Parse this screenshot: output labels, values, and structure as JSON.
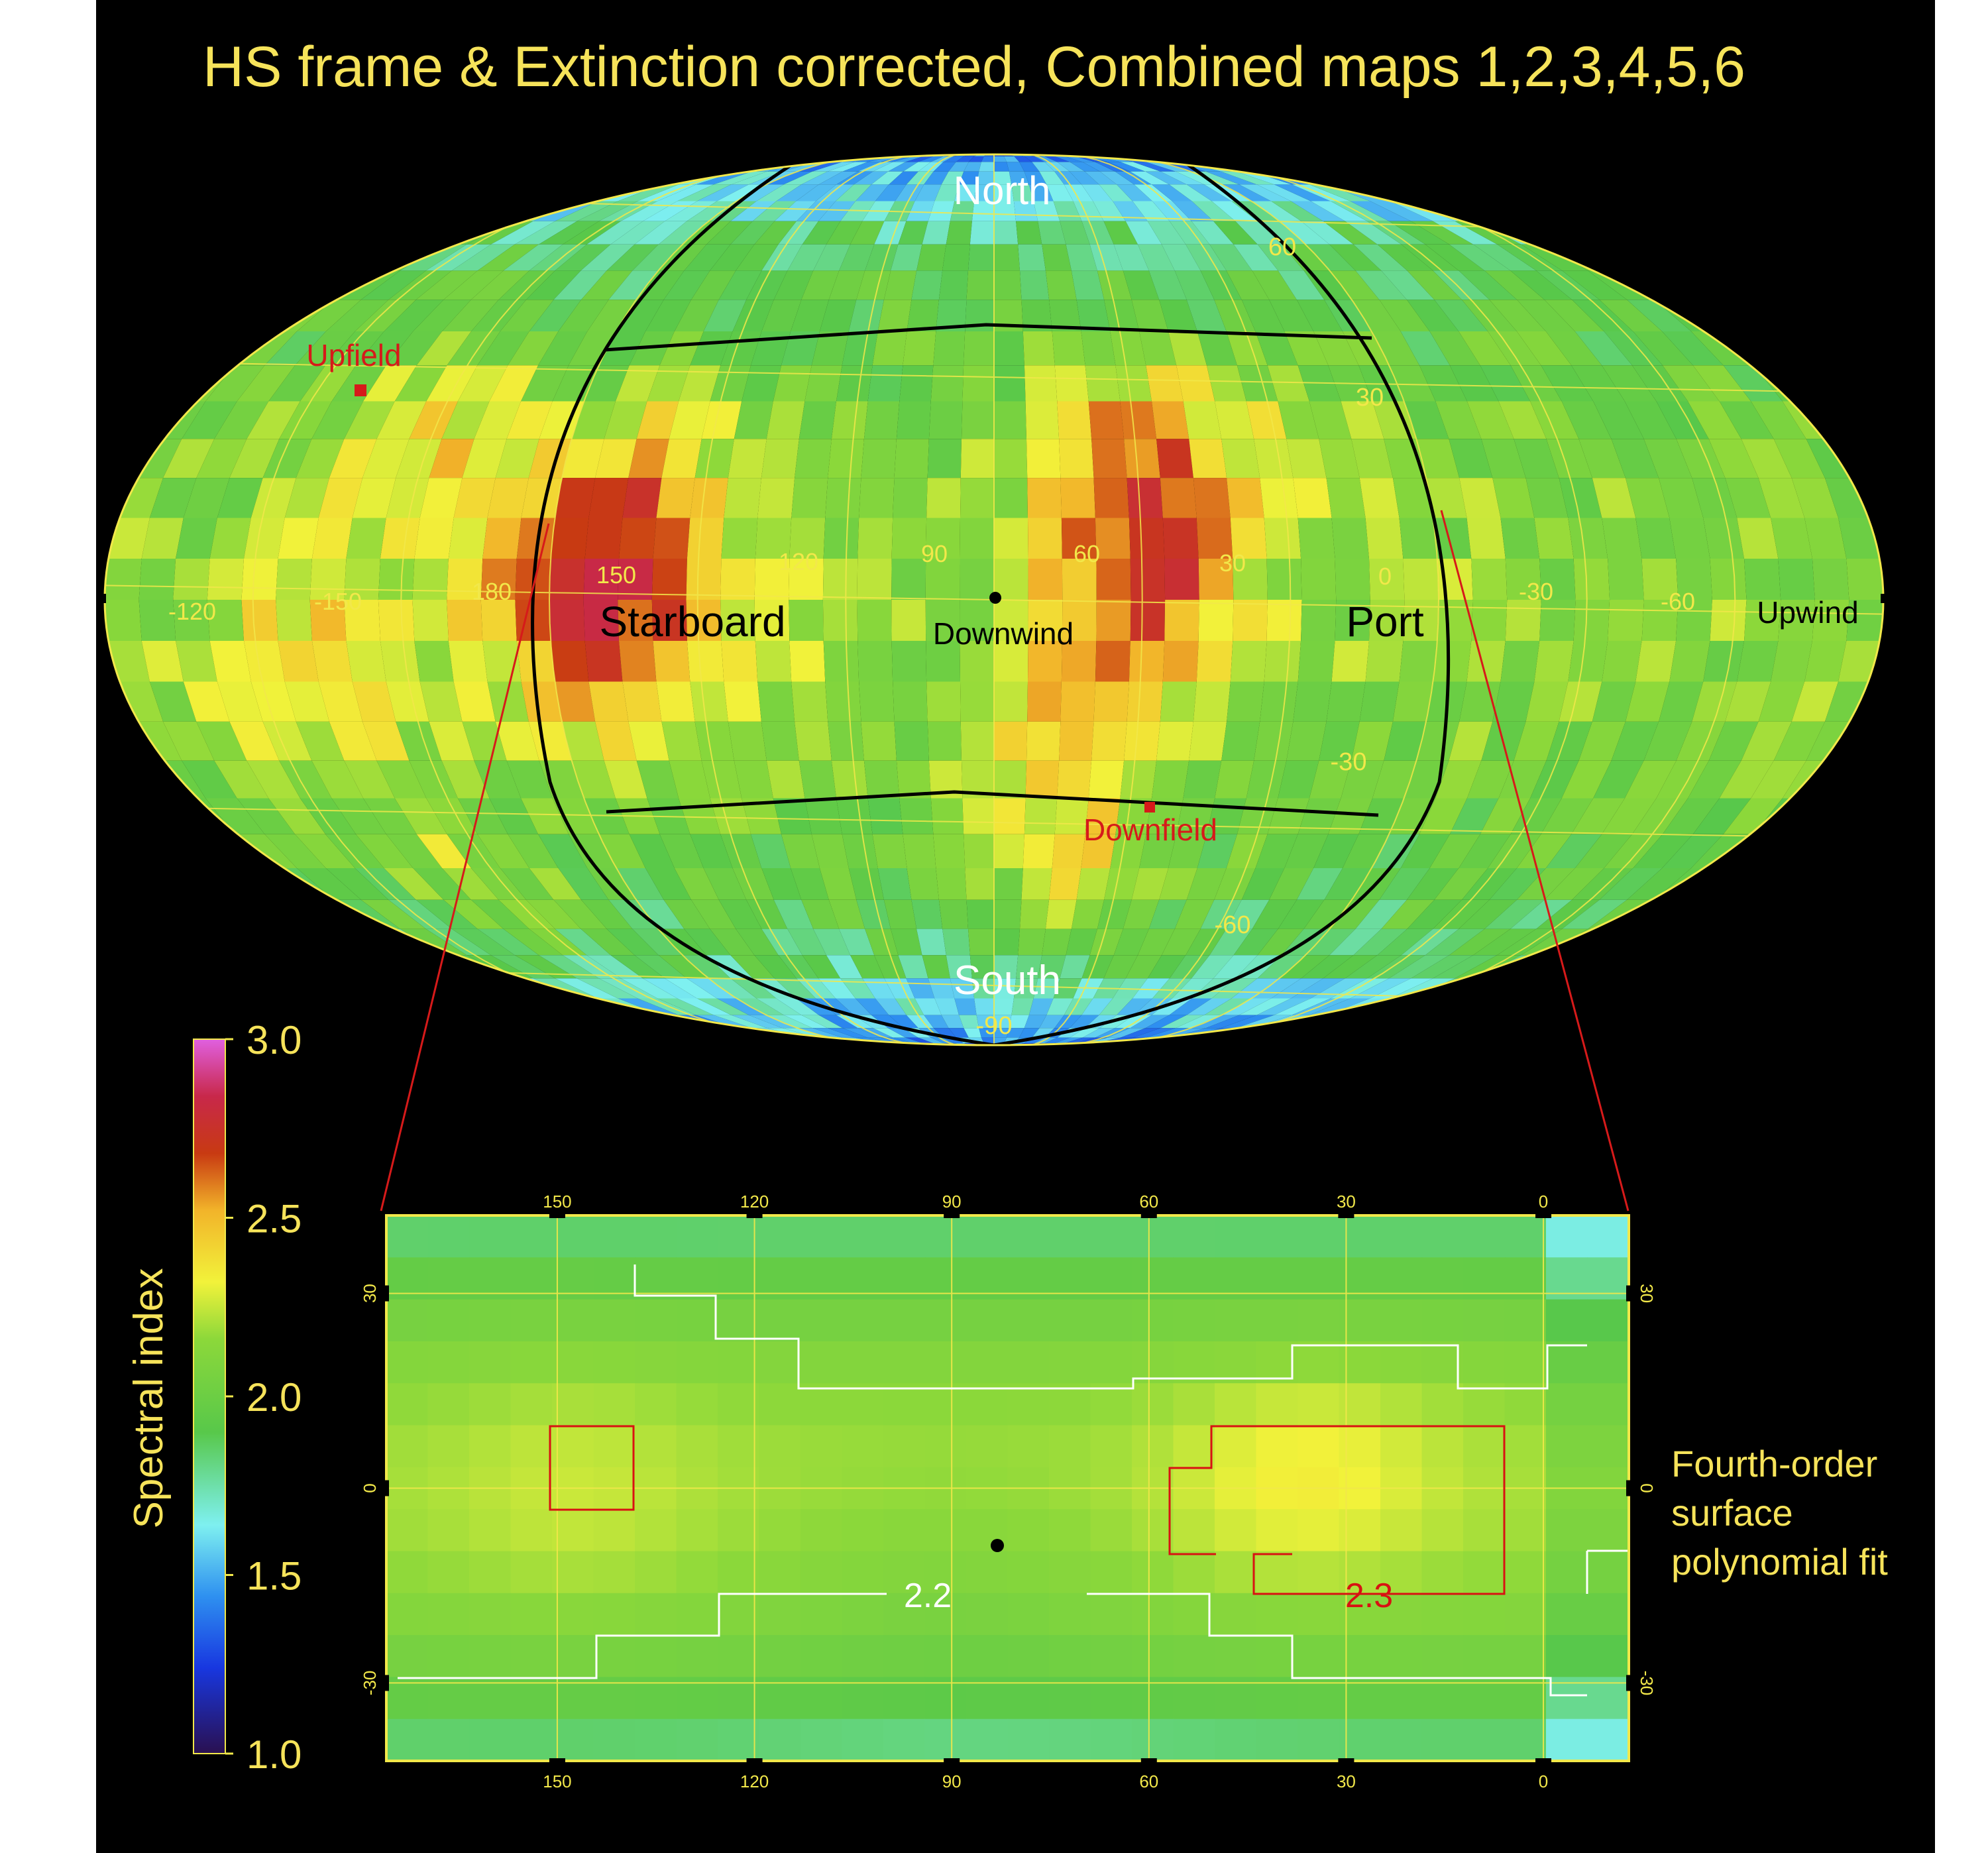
{
  "page": {
    "title": "HS frame & Extinction corrected, Combined maps 1,2,3,4,5,6",
    "inset_caption": [
      "Fourth-order",
      "surface",
      "polynomial fit"
    ]
  },
  "colors": {
    "background": "#000000",
    "title": "#f6e35a",
    "grid": "#f2e84a",
    "contour_low": "#ffffff",
    "contour_high": "#d81212",
    "marker": "#d61a1a",
    "zoom_lines": "#d61a1a",
    "boundary": "#000000",
    "colorbar": [
      "#2a1050",
      "#1837e0",
      "#2e90f0",
      "#7ef0f0",
      "#58c84a",
      "#8cd83a",
      "#f2f23a",
      "#f2b42a",
      "#c83a12",
      "#c8284a",
      "#e060e0"
    ]
  },
  "map_labels": {
    "north": "North",
    "south": "South",
    "starboard": "Starboard",
    "port": "Port",
    "downwind": "Downwind",
    "upwind": "Upwind",
    "upfield": "Upfield",
    "downfield": "Downfield"
  },
  "map_lon_labels": [
    "-120",
    "-150",
    "180",
    "150",
    "120",
    "90",
    "60",
    "30",
    "0",
    "-30",
    "-60"
  ],
  "map_lat_labels": [
    "60",
    "30",
    "-30",
    "-60",
    "-90"
  ],
  "chart_data": [
    {
      "type": "heatmap",
      "title": "HS frame & Extinction corrected, Combined maps 1,2,3,4,5,6",
      "projection": "Mollweide (all-sky)",
      "value_label": "Spectral index",
      "value_range": [
        1.0,
        3.0
      ],
      "x_ticks": [
        "-120",
        "-150",
        "180",
        "150",
        "120",
        "90",
        "60",
        "30",
        "0",
        "-30",
        "-60"
      ],
      "y_ticks": [
        "60",
        "30",
        "-30",
        "-60",
        "-90"
      ],
      "features": {
        "poles": "low spectral index (~1.3–1.6, blue)",
        "equatorial_band": "~2.0–2.3 (green/yellow)",
        "starboard_port_hotspots": "~2.4–2.6 (orange)"
      },
      "grid": true
    },
    {
      "type": "heatmap",
      "title": "Fourth-order surface polynomial fit",
      "x_ticks": [
        "150",
        "120",
        "90",
        "60",
        "30",
        "0"
      ],
      "y_ticks": [
        "30",
        "0",
        "-30"
      ],
      "x_range": [
        176,
        -13
      ],
      "y_range": [
        -42,
        42
      ],
      "contours": [
        {
          "level": "2.2",
          "color": "white"
        },
        {
          "level": "2.3",
          "color": "red"
        }
      ],
      "value_range": [
        1.6,
        2.35
      ],
      "grid": true
    }
  ],
  "colorbar": {
    "label": "Spectral index",
    "ticks": [
      "3.0",
      "2.5",
      "2.0",
      "1.5",
      "1.0"
    ]
  },
  "inset": {
    "x_ticks": [
      "150",
      "120",
      "90",
      "60",
      "30",
      "0"
    ],
    "y_ticks": [
      "30",
      "0",
      "-30"
    ],
    "contour_labels": [
      "2.2",
      "2.3"
    ]
  }
}
